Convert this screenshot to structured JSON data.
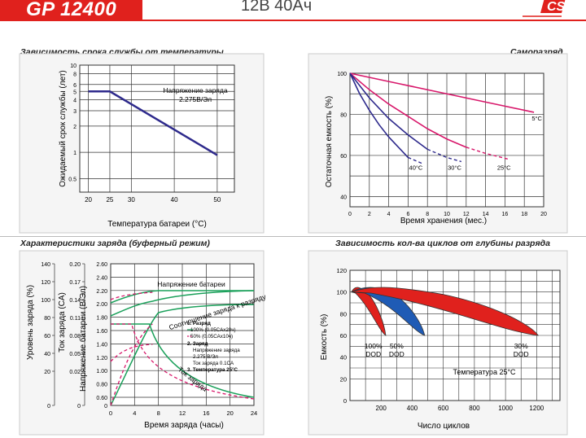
{
  "header": {
    "model": "GP 12400",
    "spec": "12В 40Ач",
    "logo_icon": "csb-logo",
    "brand_color": "#e0211d"
  },
  "chart_data": [
    {
      "type": "line",
      "title": "Зависимость срока службы от температуры",
      "xlabel": "Температура батареи (°C)",
      "ylabel": "Ожидаемый срок службы (лет)",
      "scale_y": "log",
      "xlim": [
        18,
        54
      ],
      "ylim": [
        0.35,
        10
      ],
      "x_ticks": [
        20,
        25,
        30,
        40,
        50
      ],
      "y_ticks": [
        10,
        8,
        6,
        5,
        4,
        3,
        2,
        1,
        0.5
      ],
      "annotation": "Напряжение заряда\n2.275В/Эл",
      "series": [
        {
          "color": "#2e2a8c",
          "x": [
            20,
            25,
            50
          ],
          "y": [
            5,
            5,
            0.93
          ]
        }
      ]
    },
    {
      "type": "line",
      "title": "Саморазряд",
      "xlabel": "Время хранения (мес.)",
      "ylabel": "Остаточная емкость (%)",
      "xlim": [
        0,
        20
      ],
      "ylim": [
        35,
        100
      ],
      "x_ticks": [
        0,
        2,
        4,
        6,
        8,
        10,
        12,
        14,
        16,
        18,
        20
      ],
      "y_ticks": [
        100,
        80,
        60,
        40
      ],
      "series": [
        {
          "name": "5°C",
          "color": "#d8186b",
          "x": [
            0,
            5,
            10,
            15,
            19
          ],
          "y": [
            100,
            95,
            90,
            85,
            81
          ]
        },
        {
          "name": "25°C",
          "color": "#d8186b",
          "x": [
            0,
            2,
            4,
            6,
            8,
            10,
            12
          ],
          "y": [
            100,
            92,
            85,
            79,
            73,
            68,
            64
          ],
          "dashed_from_x": 12,
          "dashed_x": [
            12,
            14,
            16.5
          ],
          "dashed_y": [
            64,
            61,
            58
          ]
        },
        {
          "name": "30°C",
          "color": "#2e2a8c",
          "x": [
            0,
            2,
            4,
            6,
            8
          ],
          "y": [
            100,
            88,
            78,
            70,
            63
          ],
          "dashed_x": [
            8,
            10,
            11.5
          ],
          "dashed_y": [
            63,
            59,
            57
          ]
        },
        {
          "name": "40°C",
          "color": "#2e2a8c",
          "x": [
            0,
            1,
            2,
            3,
            4,
            5,
            6
          ],
          "y": [
            100,
            90,
            82,
            75,
            69,
            64,
            59
          ],
          "dashed_x": [
            6,
            7,
            7.5
          ],
          "dashed_y": [
            59,
            57,
            56
          ]
        }
      ]
    },
    {
      "type": "line",
      "title": "Характеристики  заряда (буферный режим)",
      "xlabel": "Время заряда (часы)",
      "axes_left": [
        {
          "label": "Уровень заряда (%)",
          "ticks": [
            "140",
            "120",
            "100",
            "80",
            "60",
            "40",
            "20",
            "0"
          ]
        },
        {
          "label": "Ток заряда (CA)",
          "ticks": [
            "0.20",
            "0.17",
            "0.14",
            "0.11",
            "0.08",
            "0.05",
            "0.02",
            "0"
          ]
        },
        {
          "label": "Напряжение батареи (В/Эл)",
          "ticks": [
            "2.60",
            "2.40",
            "2.20",
            "2.00",
            "1.80",
            "1.60",
            "1.40",
            "1.20",
            "1.00",
            "0.80",
            "0.60",
            "0"
          ]
        }
      ],
      "x_ticks": [
        0,
        4,
        8,
        12,
        16,
        20,
        24
      ],
      "labels": {
        "voltage": "Напряжение батареи",
        "soc": "Соотношение заряда к разряду",
        "current": "Ток заряда"
      },
      "legend": {
        "h1": "1. Разряд",
        "l1": "100% (0.05CAx20ч)",
        "l2": "50% (0.05CAx10ч)",
        "h2": "2. Заряд",
        "l3": "Напряжение заряда",
        "l4": "2.275 В/Эл",
        "l5": "Ток заряда 0.1CA",
        "h3": "3. Температура 25°C"
      }
    },
    {
      "type": "area",
      "title": "Зависимость кол-ва циклов от глубины разряда",
      "xlabel": "Число циклов",
      "ylabel": "Емкость (%)",
      "xlim": [
        0,
        1350
      ],
      "ylim": [
        0,
        120
      ],
      "x_ticks": [
        200,
        400,
        600,
        800,
        1000,
        1200
      ],
      "y_ticks": [
        120,
        100,
        80,
        60,
        40,
        20,
        0
      ],
      "annotation": "Температура 25°C",
      "series": [
        {
          "name": "100%\nDOD",
          "color": "#e0211d",
          "peak_x": 60,
          "end_x": 230,
          "end_y": 60
        },
        {
          "name": "50%\nDOD",
          "color": "#1f5bb5",
          "peak_x": 180,
          "end_x": 480,
          "end_y": 60
        },
        {
          "name": "30%\nDOD",
          "color": "#e0211d",
          "peak_x": 260,
          "end_x": 1210,
          "end_y": 60
        }
      ]
    }
  ],
  "grid_color": "#333",
  "pink": "#d8186b",
  "navy": "#2e2a8c",
  "green": "#1aa05a"
}
